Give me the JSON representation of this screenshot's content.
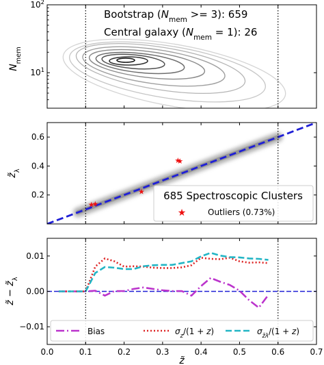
{
  "chart_data": [
    {
      "type": "contour",
      "panel": "top",
      "ylabel": "N_mem",
      "yscale": "log",
      "xlim": [
        0.0,
        0.7
      ],
      "ylim": [
        3,
        100
      ],
      "yticks": [
        {
          "value": 10,
          "label": "10^1"
        },
        {
          "value": 100,
          "label": "10^2"
        }
      ],
      "annotations": [
        "Bootstrap (N_mem >= 3): 659",
        "Central galaxy (N_mem = 1): 26"
      ],
      "vlines": [
        0.1,
        0.6
      ],
      "grid": false
    },
    {
      "type": "scatter",
      "panel": "middle",
      "ylabel": "z_λ",
      "xlim": [
        0.0,
        0.7
      ],
      "ylim": [
        0.0,
        0.7
      ],
      "yticks": [
        0.2,
        0.4,
        0.6
      ],
      "reference_line": {
        "x": [
          0.0,
          0.7
        ],
        "y": [
          0.0,
          0.7
        ],
        "style": "dashed",
        "color": "#1f1fd6"
      },
      "band_x": [
        0.08,
        0.6
      ],
      "outliers": [
        {
          "x": 0.115,
          "y": 0.135
        },
        {
          "x": 0.125,
          "y": 0.14
        },
        {
          "x": 0.245,
          "y": 0.225
        },
        {
          "x": 0.34,
          "y": 0.44
        },
        {
          "x": 0.345,
          "y": 0.435
        }
      ],
      "vlines": [
        0.1,
        0.6
      ],
      "legend": {
        "title": "685 Spectroscopic Clusters",
        "entries": [
          "Outliers (0.73%)"
        ],
        "placement": "lower-right"
      },
      "grid": false
    },
    {
      "type": "line",
      "panel": "bottom",
      "xlabel": "z̃",
      "ylabel": "z̃ − z̃_λ",
      "xlim": [
        0.0,
        0.7
      ],
      "ylim": [
        -0.015,
        0.015
      ],
      "xticks": [
        0.0,
        0.1,
        0.2,
        0.3,
        0.4,
        0.5,
        0.6,
        0.7
      ],
      "yticks": [
        -0.01,
        0.0,
        0.01
      ],
      "hline": 0.0,
      "vlines": [
        0.1,
        0.6
      ],
      "x": [
        0.03,
        0.05,
        0.08,
        0.1,
        0.125,
        0.15,
        0.175,
        0.2,
        0.225,
        0.25,
        0.275,
        0.3,
        0.325,
        0.35,
        0.375,
        0.4,
        0.425,
        0.45,
        0.475,
        0.5,
        0.525,
        0.55,
        0.575
      ],
      "series": [
        {
          "name": "Bias",
          "color": "#bb33cc",
          "style": "dashdot",
          "values": [
            0.0,
            0.0,
            0.0,
            0.0,
            0.0002,
            -0.0012,
            0.0001,
            0.0001,
            0.0007,
            0.0011,
            0.0007,
            0.0003,
            0.0001,
            0.0001,
            -0.0012,
            0.0015,
            0.0038,
            0.0027,
            0.0018,
            0.0002,
            -0.0025,
            -0.0046,
            -0.001
          ]
        },
        {
          "name": "σ_z/(1+z)",
          "color": "#dd2222",
          "style": "dotted",
          "values": [
            0.0,
            0.0,
            0.0,
            0.0,
            0.007,
            0.0093,
            0.0085,
            0.007,
            0.0071,
            0.007,
            0.0067,
            0.0066,
            0.0066,
            0.0068,
            0.0074,
            0.0095,
            0.0092,
            0.0091,
            0.0095,
            0.0085,
            0.0081,
            0.0082,
            0.008
          ]
        },
        {
          "name": "σ_z̃λ/(1+z)",
          "color": "#22b5c5",
          "style": "dashed",
          "values": [
            0.0,
            0.0,
            0.0,
            0.0,
            0.0052,
            0.0069,
            0.0067,
            0.0063,
            0.0063,
            0.0071,
            0.0074,
            0.0075,
            0.0075,
            0.008,
            0.0085,
            0.0099,
            0.0109,
            0.0101,
            0.0097,
            0.0096,
            0.0093,
            0.0092,
            0.0089
          ]
        }
      ],
      "legend": {
        "placement": "bottom",
        "columns": 3
      },
      "grid": false
    }
  ]
}
